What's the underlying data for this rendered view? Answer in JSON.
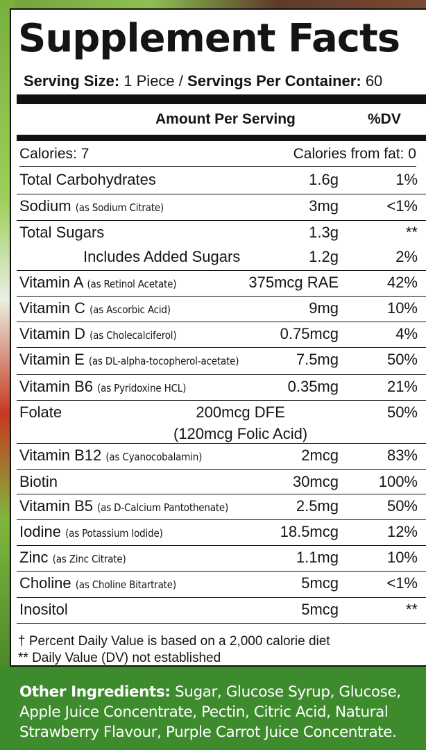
{
  "title": "Supplement Facts",
  "serving": {
    "size_label": "Serving Size:",
    "size_value": "1 Piece",
    "separator": "/",
    "servings_label": "Servings Per Container:",
    "servings_value": "60"
  },
  "header": {
    "amount": "Amount Per Serving",
    "dv": "%DV"
  },
  "calories": {
    "left": "Calories: 7",
    "right": "Calories from fat: 0"
  },
  "rows": [
    {
      "name": "Total Carbohydrates",
      "source": "",
      "amount": "1.6g",
      "dv": "1%"
    },
    {
      "name": "Sodium",
      "source": "(as Sodium Citrate)",
      "amount": "3mg",
      "dv": "<1%"
    },
    {
      "name": "Total Sugars",
      "source": "",
      "amount": "1.3g",
      "dv": "**"
    },
    {
      "name": "Includes Added Sugars",
      "source": "",
      "amount": "1.2g",
      "dv": "2%"
    },
    {
      "name": "Vitamin A",
      "source": "(as Retinol Acetate)",
      "amount": "375mcg RAE",
      "dv": "42%"
    },
    {
      "name": "Vitamin C",
      "source": "(as Ascorbic Acid)",
      "amount": "9mg",
      "dv": "10%"
    },
    {
      "name": "Vitamin D",
      "source": "(as Cholecalciferol)",
      "amount": "0.75mcg",
      "dv": "4%"
    },
    {
      "name": "Vitamin E",
      "source": "(as DL-alpha-tocopherol-acetate)",
      "amount": "7.5mg",
      "dv": "50%"
    },
    {
      "name": "Vitamin B6",
      "source": "(as Pyridoxine HCL)",
      "amount": "0.35mg",
      "dv": "21%"
    },
    {
      "name": "Folate",
      "source": "",
      "amount": "200mcg DFE",
      "amount2": "(120mcg Folic Acid)",
      "dv": "50%"
    },
    {
      "name": "Vitamin B12",
      "source": "(as Cyanocobalamin)",
      "amount": "2mcg",
      "dv": "83%"
    },
    {
      "name": "Biotin",
      "source": "",
      "amount": "30mcg",
      "dv": "100%"
    },
    {
      "name": "Vitamin B5",
      "source": "(as D-Calcium Pantothenate)",
      "amount": "2.5mg",
      "dv": "50%"
    },
    {
      "name": "Iodine",
      "source": "(as Potassium Iodide)",
      "amount": "18.5mcg",
      "dv": "12%"
    },
    {
      "name": "Zinc",
      "source": "(as Zinc Citrate)",
      "amount": "1.1mg",
      "dv": "10%"
    },
    {
      "name": "Choline",
      "source": "(as Choline Bitartrate)",
      "amount": "5mcg",
      "dv": "<1%"
    },
    {
      "name": "Inositol",
      "source": "",
      "amount": "5mcg",
      "dv": "**"
    }
  ],
  "footnotes": [
    "† Percent Daily Value is based on a 2,000 calorie diet",
    "** Daily Value (DV) not established"
  ],
  "ingredients": {
    "label": "Other Ingredients:",
    "text": " Sugar, Glucose Syrup, Glucose, Apple Juice Concentrate, Pectin, Citric Acid, Natural Strawberry Flavour, Purple Carrot Juice Concentrate."
  },
  "colors": {
    "ink": "#141414",
    "ingredients_bg": "#3e8b2d"
  }
}
